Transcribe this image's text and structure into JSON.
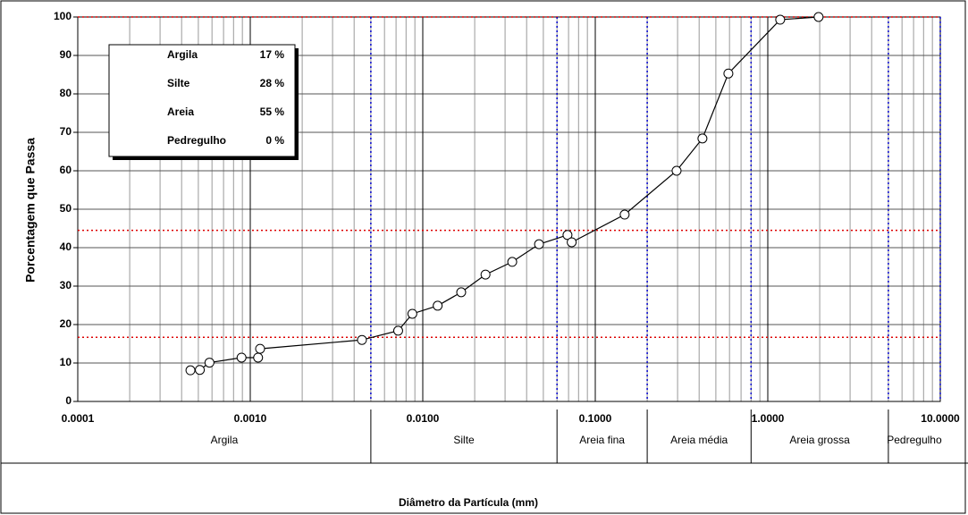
{
  "chart_data": {
    "type": "line",
    "x_label": "Diâmetro da Partícula (mm)",
    "y_label": "Porcentagem que Passa",
    "log_x": true,
    "grid": true,
    "color": "#000000",
    "x": [
      0.00045,
      0.00051,
      0.00058,
      0.00089,
      0.00111,
      0.00114,
      0.00444,
      0.0072,
      0.0087,
      0.0122,
      0.0167,
      0.0231,
      0.033,
      0.0472,
      0.069,
      0.073,
      0.148,
      0.296,
      0.418,
      0.591,
      1.18,
      1.97
    ],
    "values": [
      8.1,
      8.2,
      10.1,
      11.4,
      11.4,
      13.7,
      16.0,
      18.4,
      22.8,
      24.9,
      28.4,
      33.0,
      36.3,
      40.9,
      43.3,
      41.4,
      48.6,
      60.0,
      68.4,
      85.3,
      99.3,
      100
    ],
    "xlim": [
      0.0001,
      10
    ],
    "xticks": [
      {
        "value": 0.0001,
        "label": "0.0001"
      },
      {
        "value": 0.001,
        "label": "0.0010"
      },
      {
        "value": 0.01,
        "label": "0.0100"
      },
      {
        "value": 0.1,
        "label": "0.1000"
      },
      {
        "value": 1,
        "label": "1.0000"
      },
      {
        "value": 10,
        "label": "10.0000"
      }
    ],
    "ylim": [
      0,
      100
    ],
    "yticks": [
      0,
      10,
      20,
      30,
      40,
      50,
      60,
      70,
      80,
      90,
      100
    ],
    "reference_lines": [
      100,
      44.5,
      16.7
    ],
    "bands": {
      "names": [
        "Argila",
        "Silte",
        "Areia fina",
        "Areia média",
        "Areia grossa",
        "Pedregulho"
      ],
      "edges": [
        0.0001,
        0.005,
        0.06,
        0.2,
        0.8,
        5,
        10
      ]
    },
    "summary": {
      "names": [
        "Argila",
        "Silte",
        "Areia",
        "Pedregulho"
      ],
      "values": [
        17,
        28,
        55,
        0
      ],
      "value_labels": [
        "17 %",
        "28 %",
        "55 %",
        "0 %"
      ]
    }
  }
}
